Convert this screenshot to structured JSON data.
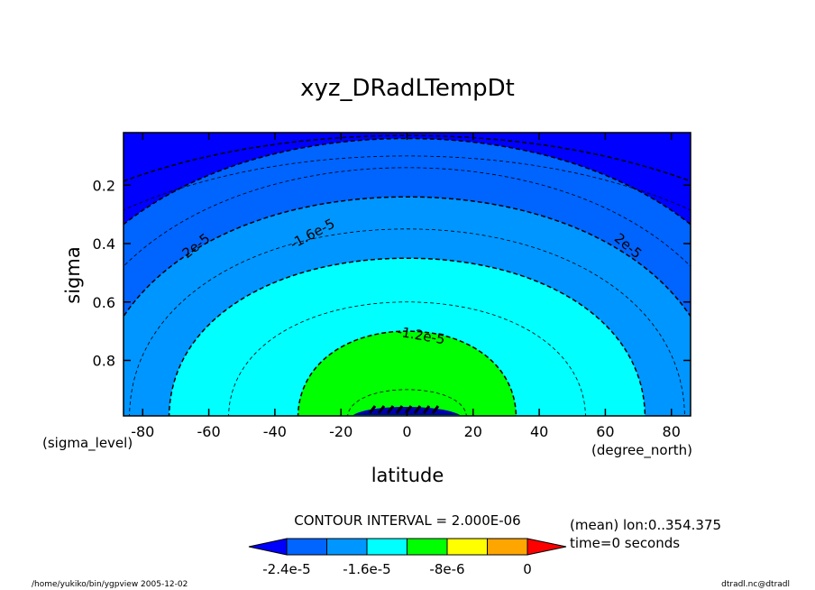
{
  "chart_data": {
    "type": "contour",
    "title": "xyz_DRadLTempDt",
    "xlabel": "latitude",
    "ylabel": "sigma",
    "x_unit": "(degree_north)",
    "y_unit": "(sigma_level)",
    "xlim": [
      -85.8,
      85.8
    ],
    "ylim": [
      0.02,
      0.99
    ],
    "y_reversed": true,
    "x_ticks": [
      "-80",
      "-60",
      "-40",
      "-20",
      "0",
      "20",
      "40",
      "60",
      "80"
    ],
    "x_tick_values": [
      -80,
      -60,
      -40,
      -20,
      0,
      20,
      40,
      60,
      80
    ],
    "y_ticks": [
      "0.2",
      "0.4",
      "0.6",
      "0.8"
    ],
    "y_tick_values": [
      0.2,
      0.4,
      0.6,
      0.8
    ],
    "contour_labels": [
      {
        "text": "2e-5",
        "lat": -63,
        "sigma": 0.42,
        "rot": -38
      },
      {
        "text": "-1.6e-5",
        "lat": -28,
        "sigma": 0.38,
        "rot": -28
      },
      {
        "text": "-1.2e-5",
        "lat": 4,
        "sigma": 0.73,
        "rot": 10
      },
      {
        "text": "2e-5",
        "lat": 66,
        "sigma": 0.42,
        "rot": 40
      }
    ],
    "contour_interval": "CONTOUR INTERVAL = 2.000E-06",
    "info": [
      "(mean) lon:0..354.375",
      "time=0 seconds"
    ],
    "colorbar": {
      "colors": [
        "#0000ff",
        "#0064ff",
        "#0096ff",
        "#00ffff",
        "#00ff00",
        "#ffff00",
        "#ffa500",
        "#ff0000"
      ],
      "tick_labels": [
        "-2.4e-5",
        "-1.6e-5",
        "-8e-6",
        "0"
      ]
    },
    "bands": [
      {
        "level_top": 0.03,
        "w": 150,
        "color": "#0000ff"
      },
      {
        "level_top": 0.04,
        "w": 115,
        "color": "#0064ff"
      },
      {
        "level_top": 0.24,
        "w": 95,
        "color": "#0096ff"
      },
      {
        "level_top": 0.45,
        "w": 72,
        "color": "#00ffff"
      },
      {
        "level_top": 0.7,
        "w": 33,
        "color": "#00ff00"
      }
    ]
  },
  "footer": {
    "left": "/home/yukiko/bin/ygpview  2005-12-02",
    "right": "dtradl.nc@dtradl"
  }
}
